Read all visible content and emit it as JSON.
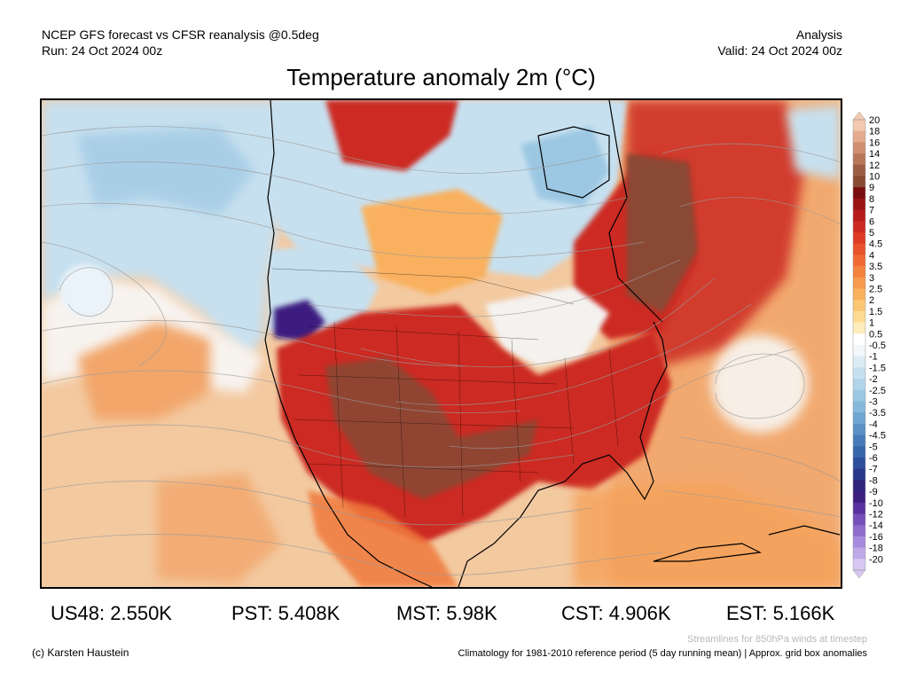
{
  "header": {
    "model_line": "NCEP GFS forecast vs CFSR reanalysis @0.5deg",
    "run_line": "Run: 24 Oct 2024 00z",
    "analysis_label": "Analysis",
    "valid_line": "Valid: 24 Oct 2024 00z",
    "title": "Temperature anomaly 2m (°C)"
  },
  "colorbar": {
    "levels": [
      "20",
      "18",
      "16",
      "14",
      "12",
      "10",
      "9",
      "8",
      "7",
      "6",
      "5",
      "4.5",
      "4",
      "3.5",
      "3",
      "2.5",
      "2",
      "1.5",
      "1",
      "0.5",
      "-0.5",
      "-1",
      "-1.5",
      "-2",
      "-2.5",
      "-3",
      "-3.5",
      "-4",
      "-4.5",
      "-5",
      "-6",
      "-7",
      "-8",
      "-9",
      "-10",
      "-12",
      "-14",
      "-16",
      "-18",
      "-20"
    ],
    "colors": [
      "#f3c9b0",
      "#e3ab8f",
      "#d08f70",
      "#b8775a",
      "#9b5d45",
      "#8a4a34",
      "#7a0d12",
      "#9a1416",
      "#b51b1b",
      "#cc2a22",
      "#de3a26",
      "#e8522c",
      "#ef6a34",
      "#f3823e",
      "#f79a4c",
      "#f9b15e",
      "#fbc775",
      "#fcdc93",
      "#fdedbb",
      "#ffffff",
      "#f3f7fa",
      "#dcebf4",
      "#c7e0ef",
      "#b2d4ea",
      "#9cc7e3",
      "#86b8db",
      "#6fa6d1",
      "#5991c5",
      "#467cb8",
      "#3767aa",
      "#2d4f9b",
      "#28388a",
      "#30247d",
      "#3d1f80",
      "#5a32a0",
      "#7450b8",
      "#8d6dcc",
      "#a78bdc",
      "#bfa8e8",
      "#d7c7f2"
    ]
  },
  "map_colors": {
    "ocean_warm": "#f3c9a0",
    "ocean_orange": "#f2a66a",
    "cold_light": "#c7e0ef",
    "cold_mid": "#9cc7e3",
    "cold_deep": "#3d1f80",
    "hot_red": "#cc2a22",
    "hot_dark": "#8a4a34",
    "streamline": "#9a9a9a",
    "border": "#000000"
  },
  "stats": [
    {
      "label": "US48: 2.550K"
    },
    {
      "label": "PST: 5.408K"
    },
    {
      "label": "MST: 5.98K"
    },
    {
      "label": "CST: 4.906K"
    },
    {
      "label": "EST: 5.166K"
    }
  ],
  "footer": {
    "credit": "(c) Karsten Haustein",
    "streamlines_note": "Streamlines for 850hPa winds at timestep",
    "climatology_note": "Climatology for 1981-2010 reference period (5 day running mean) | Approx. grid box anomalies"
  }
}
